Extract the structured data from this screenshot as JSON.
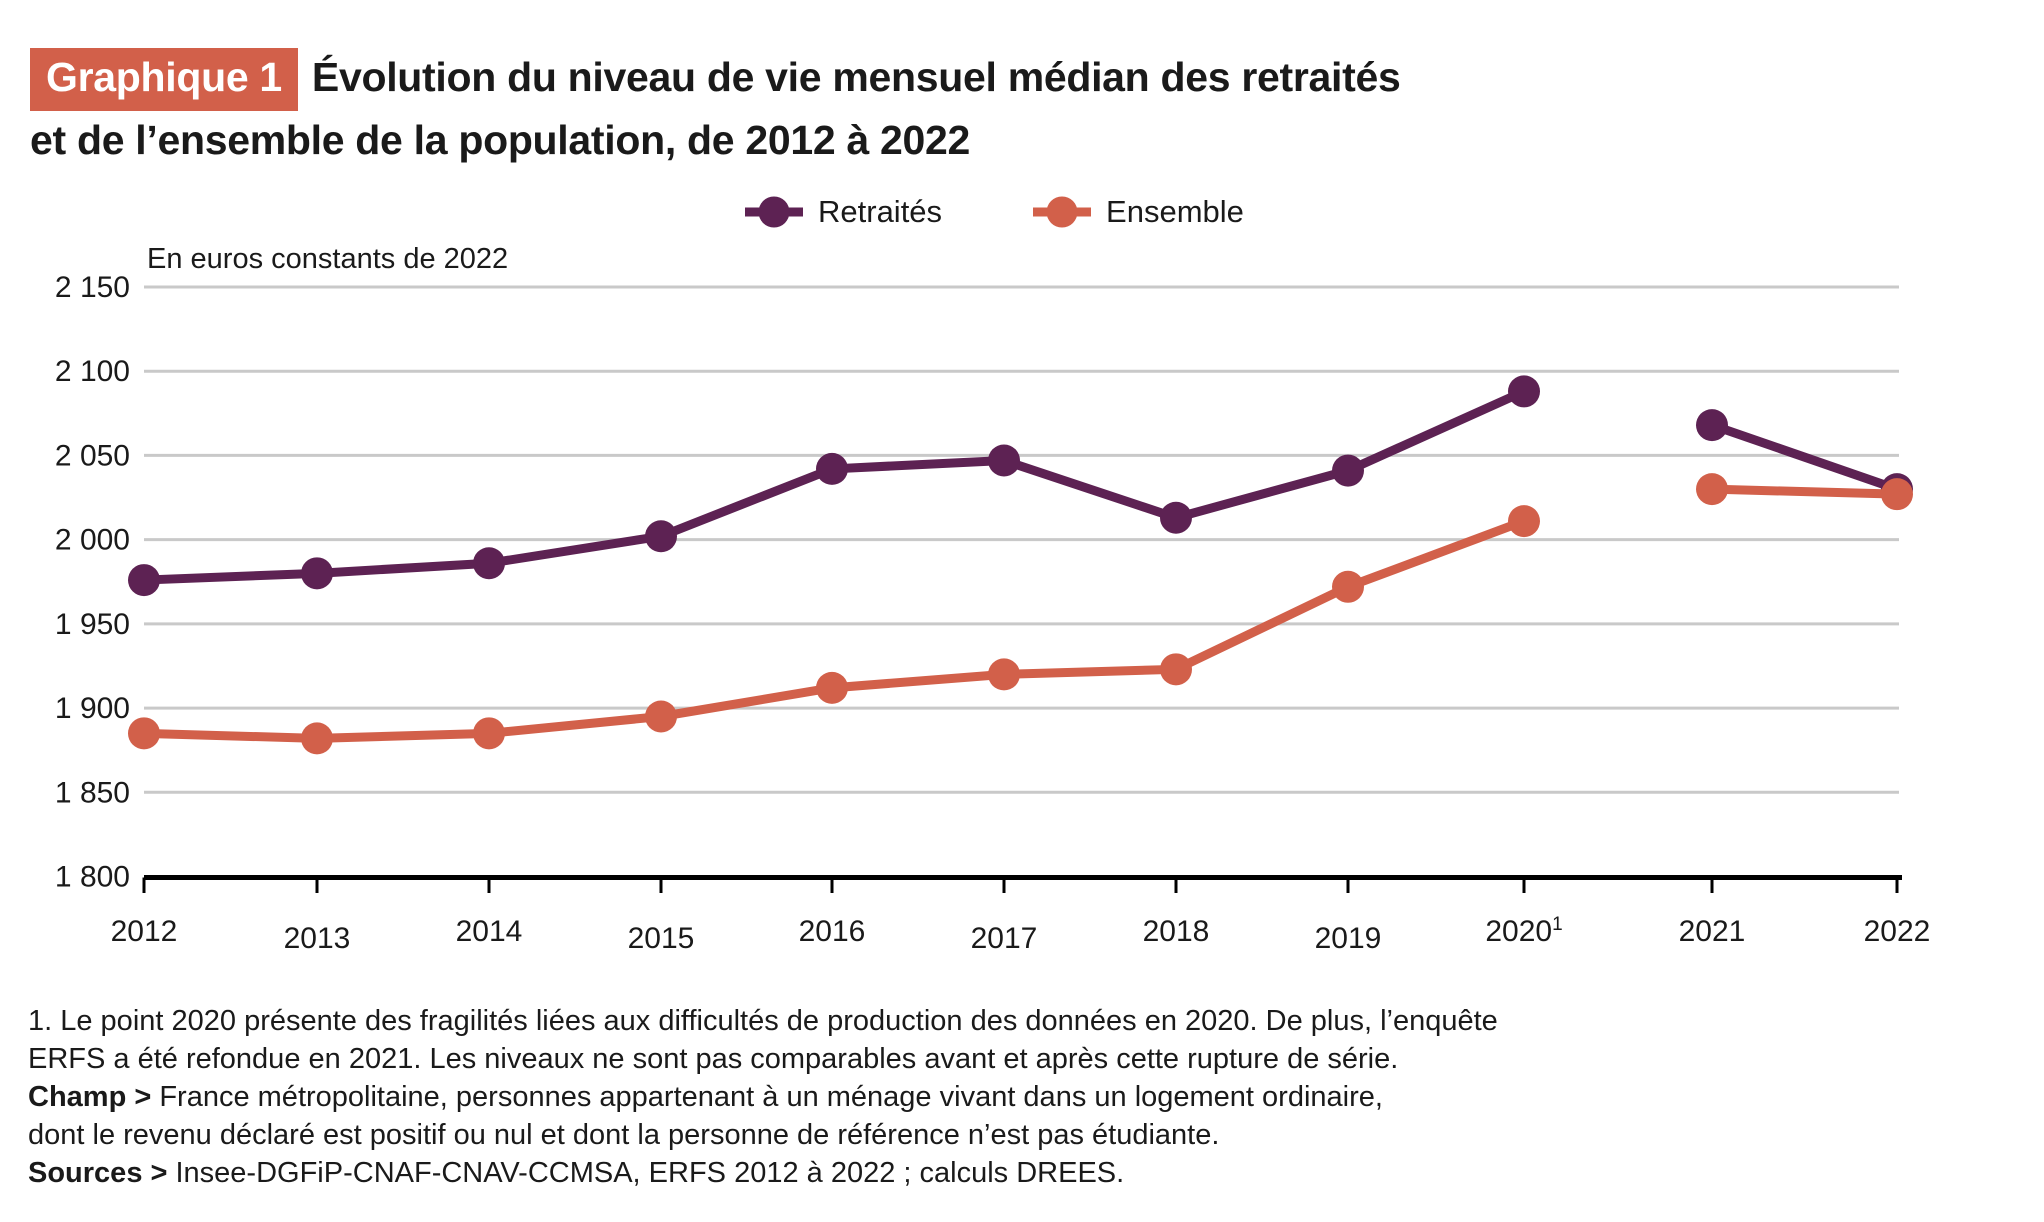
{
  "header": {
    "badge_label": "Graphique 1",
    "badge_color": "#d2604a",
    "title_line1": "Évolution du niveau de vie mensuel médian des retraités",
    "title_line2": "et de l’ensemble de la population, de 2012 à 2022"
  },
  "chart_data": {
    "type": "line",
    "title": "Évolution du niveau de vie mensuel médian des retraités et de l’ensemble de la population, de 2012 à 2022",
    "unit_label": "En euros constants de 2022",
    "categories": [
      "2012",
      "2013",
      "2014",
      "2015",
      "2016",
      "2017",
      "2018",
      "2019",
      "2020",
      "2021",
      "2022"
    ],
    "x_tick_superscripts": {
      "2020": "1"
    },
    "series": [
      {
        "name": "Retraités",
        "color": "#5d2253",
        "values": [
          1976,
          1980,
          1986,
          2002,
          2042,
          2047,
          2013,
          2041,
          2088,
          2068,
          2030
        ]
      },
      {
        "name": "Ensemble",
        "color": "#d2604a",
        "values": [
          1885,
          1882,
          1885,
          1895,
          1912,
          1920,
          1923,
          1972,
          2011,
          2030,
          2027
        ]
      }
    ],
    "series_break_after_index": 8,
    "ylim": [
      1800,
      2150
    ],
    "y_ticks": [
      {
        "value": 2150,
        "label": "2 150"
      },
      {
        "value": 2100,
        "label": "2 100"
      },
      {
        "value": 2050,
        "label": "2 050"
      },
      {
        "value": 2000,
        "label": "2 000"
      },
      {
        "value": 1950,
        "label": "1 950"
      },
      {
        "value": 1900,
        "label": "1 900"
      },
      {
        "value": 1850,
        "label": "1 850"
      },
      {
        "value": 1800,
        "label": "1 800"
      }
    ],
    "grid": true,
    "grid_color": "#c9c9c9",
    "axis_color": "#000000",
    "text_color": "#1a1a1a",
    "legend_position": "top"
  },
  "notes": [
    {
      "prefix": "",
      "text": "1. Le point 2020 présente des fragilités liées aux difficultés de production des données en 2020. De plus, l’enquête"
    },
    {
      "prefix": "",
      "text": "ERFS a été refondue en 2021. Les niveaux ne sont pas comparables avant et après cette rupture de série."
    },
    {
      "prefix": "Champ >",
      "text": " France métropolitaine, personnes appartenant à un ménage vivant dans un logement ordinaire,"
    },
    {
      "prefix": "",
      "text": "dont le revenu déclaré est positif ou nul et dont la personne de référence n’est pas étudiante."
    },
    {
      "prefix": "Sources >",
      "text": " Insee-DGFiP-CNAF-CNAV-CCMSA, ERFS 2012 à 2022 ; calculs DREES."
    }
  ]
}
